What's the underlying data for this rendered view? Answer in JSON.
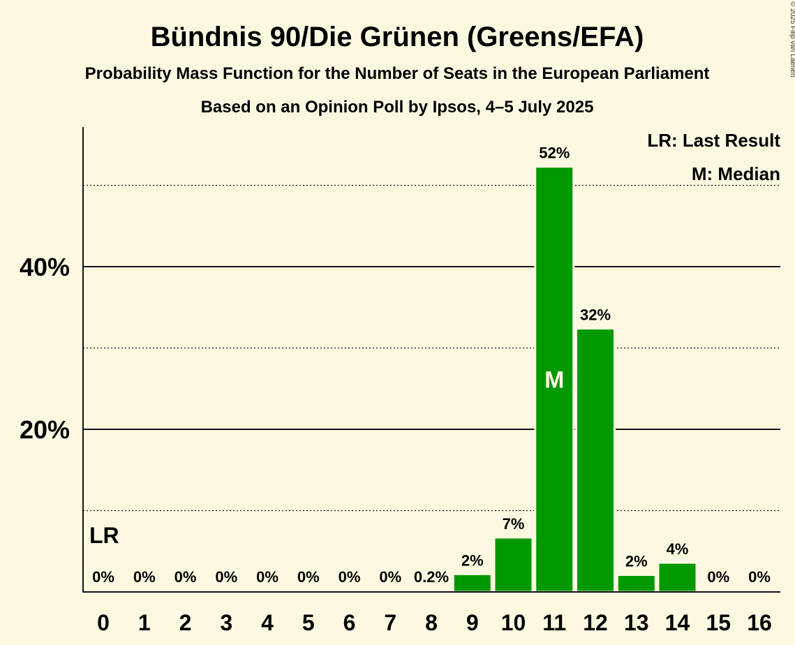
{
  "chart_data": {
    "type": "bar",
    "title": "Bündnis 90/Die Grünen (Greens/EFA)",
    "subtitle": "Probability Mass Function for the Number of Seats in the European Parliament",
    "subtitle2": "Based on an Opinion Poll by Ipsos, 4–5 July 2025",
    "categories": [
      "0",
      "1",
      "2",
      "3",
      "4",
      "5",
      "6",
      "7",
      "8",
      "9",
      "10",
      "11",
      "12",
      "13",
      "14",
      "15",
      "16"
    ],
    "values": [
      0,
      0,
      0,
      0,
      0,
      0,
      0,
      0,
      0.2,
      2.2,
      6.7,
      52.3,
      32.4,
      2.1,
      3.6,
      0,
      0
    ],
    "labels": [
      "0%",
      "0%",
      "0%",
      "0%",
      "0%",
      "0%",
      "0%",
      "0%",
      "0.2%",
      "2%",
      "7%",
      "52%",
      "32%",
      "2%",
      "4%",
      "0%",
      "0%"
    ],
    "xlabel": "",
    "ylabel": "",
    "ylim": [
      0,
      57
    ],
    "yticks": [
      {
        "value": 20,
        "label": "20%"
      },
      {
        "value": 40,
        "label": "40%"
      }
    ],
    "minor_gridlines": [
      10,
      30,
      50
    ],
    "major_gridlines": [
      20,
      40
    ],
    "last_result_seat": 0,
    "last_result_marker": "LR",
    "median_seat": 11,
    "median_marker": "M",
    "legend": [
      "LR: Last Result",
      "M: Median"
    ],
    "legend_position": "top-right",
    "bar_color": "#009900",
    "background_color": "#FFF8E1",
    "copyright": "© 2025 Filip van Laenen"
  }
}
